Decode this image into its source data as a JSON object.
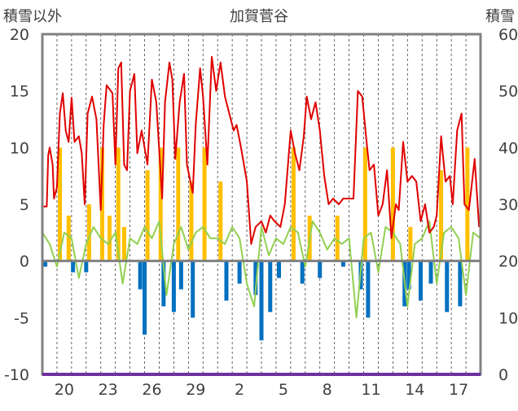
{
  "chart_data": {
    "type": "line",
    "title": "加賀菅谷",
    "ylabel_left": "積雪以外",
    "ylabel_right": "積雪",
    "ylim_left": [
      -10,
      20
    ],
    "ylim_right": [
      0,
      60
    ],
    "yticks_left": [
      "20",
      "15",
      "10",
      "5",
      "0",
      "-5",
      "-10"
    ],
    "yticks_right": [
      "60",
      "50",
      "40",
      "30",
      "20",
      "10",
      "0"
    ],
    "x_tick_labels": [
      "20",
      "23",
      "26",
      "29",
      "2",
      "5",
      "8",
      "11",
      "14",
      "17"
    ],
    "x_tick_day_index": [
      1.5,
      4.5,
      7.5,
      10.5,
      13.5,
      16.5,
      19.5,
      22.5,
      25.5,
      28.5
    ],
    "x_range_days": [
      0,
      30
    ],
    "grid": {
      "vertical_dashed_every_day": true,
      "horizontal": false
    },
    "colors": {
      "red_series": "#e00000",
      "green_series": "#92d050",
      "orange_bars": "#ffc000",
      "blue_bars": "#0070c0",
      "zero_line": "#808080",
      "bottom_line": "#7030a0",
      "frame": "#808080"
    },
    "series": [
      {
        "color_key": "red_series",
        "kind": "line",
        "axis": "left",
        "x": [
          0,
          0.3,
          0.4,
          0.5,
          0.7,
          0.8,
          1.0,
          1.2,
          1.4,
          1.6,
          1.8,
          2.0,
          2.2,
          2.5,
          2.7,
          2.9,
          3.1,
          3.4,
          3.7,
          4.0,
          4.2,
          4.4,
          4.8,
          5.0,
          5.2,
          5.4,
          5.6,
          5.8,
          6.0,
          6.3,
          6.5,
          6.8,
          7.0,
          7.2,
          7.5,
          7.8,
          8.2,
          8.4,
          8.7,
          8.9,
          9.1,
          9.4,
          9.7,
          9.9,
          10.3,
          10.5,
          10.8,
          11.0,
          11.3,
          11.6,
          11.9,
          12.2,
          12.5,
          12.8,
          13.1,
          13.3,
          13.6,
          14.0,
          14.3,
          14.6,
          15.0,
          15.3,
          15.6,
          15.9,
          16.3,
          16.6,
          17.0,
          17.3,
          17.6,
          17.9,
          18.1,
          18.4,
          18.7,
          19.0,
          19.3,
          19.6,
          19.9,
          20.3,
          20.6,
          21.0,
          21.3,
          21.6,
          21.9,
          22.2,
          22.4,
          22.7,
          23.0,
          23.3,
          23.6,
          23.9,
          24.2,
          24.4,
          24.7,
          25.0,
          25.3,
          25.6,
          25.9,
          26.2,
          26.5,
          26.8,
          27.0,
          27.3,
          27.6,
          27.9,
          28.1,
          28.4,
          28.7,
          28.9,
          29.2,
          29.6,
          29.9
        ],
        "values": [
          4.8,
          4.8,
          9.3,
          10.0,
          8.5,
          5.5,
          6.5,
          13.0,
          14.8,
          11.5,
          10.5,
          14.4,
          10.5,
          11.0,
          9.5,
          5.0,
          13.0,
          14.5,
          12.5,
          4.5,
          12.0,
          15.5,
          14.8,
          8.5,
          17.0,
          17.5,
          8.5,
          8.0,
          15.0,
          16.5,
          9.5,
          11.5,
          10.0,
          8.5,
          16.0,
          14.0,
          5.5,
          14.0,
          17.5,
          16.0,
          9.0,
          14.0,
          16.5,
          8.5,
          6.0,
          12.0,
          17.0,
          14.5,
          8.5,
          18.0,
          15.0,
          17.5,
          14.5,
          13.0,
          11.5,
          12.0,
          10.0,
          7.0,
          1.5,
          3.0,
          3.5,
          2.5,
          4.0,
          3.5,
          3.0,
          5.0,
          11.5,
          9.5,
          8.0,
          11.0,
          14.5,
          12.5,
          14.0,
          11.5,
          7.5,
          5.0,
          5.5,
          5.0,
          5.5,
          5.5,
          5.5,
          15.0,
          14.5,
          10.5,
          8.0,
          8.5,
          4.0,
          5.0,
          8.0,
          2.0,
          5.0,
          4.5,
          10.5,
          7.0,
          7.5,
          7.0,
          3.5,
          5.0,
          2.5,
          3.0,
          4.0,
          11.0,
          7.0,
          7.5,
          5.0,
          11.5,
          13.0,
          5.0,
          4.5,
          9.0,
          3.0
        ]
      },
      {
        "color_key": "green_series",
        "kind": "line",
        "axis": "left",
        "x": [
          0,
          0.5,
          1.0,
          1.5,
          2.0,
          2.5,
          3.0,
          3.5,
          4.0,
          4.5,
          5.0,
          5.5,
          6.0,
          6.5,
          7.0,
          7.5,
          8.0,
          8.5,
          9.0,
          9.5,
          10.0,
          10.5,
          11.0,
          11.5,
          12.0,
          12.5,
          13.0,
          13.5,
          14.0,
          14.5,
          15.0,
          15.5,
          16.0,
          16.5,
          17.0,
          17.5,
          18.0,
          18.5,
          19.0,
          19.5,
          20.0,
          20.5,
          21.0,
          21.5,
          22.0,
          22.5,
          23.0,
          23.5,
          24.0,
          24.5,
          25.0,
          25.5,
          26.0,
          26.5,
          27.0,
          27.5,
          28.0,
          28.5,
          29.0,
          29.5,
          30.0
        ],
        "values": [
          2.5,
          1.5,
          -0.5,
          2.5,
          2.0,
          -1.5,
          1.5,
          3.0,
          2.0,
          1.5,
          2.5,
          -2.0,
          2.0,
          1.5,
          3.0,
          2.0,
          3.5,
          -3.0,
          1.5,
          3.0,
          1.0,
          2.5,
          3.0,
          2.0,
          2.0,
          1.5,
          3.0,
          2.0,
          -2.0,
          -4.0,
          3.0,
          0.5,
          2.0,
          1.5,
          3.0,
          2.5,
          -0.5,
          3.5,
          2.5,
          1.0,
          2.0,
          1.5,
          2.0,
          -5.0,
          2.0,
          2.5,
          -1.0,
          3.0,
          2.5,
          1.5,
          -4.0,
          1.5,
          2.0,
          3.5,
          -2.0,
          2.5,
          3.0,
          2.0,
          -3.0,
          2.5,
          2.0
        ]
      },
      {
        "color_key": "orange_bars",
        "kind": "bars",
        "axis": "left",
        "x": [
          1.2,
          1.8,
          3.2,
          4.1,
          4.6,
          5.2,
          5.6,
          7.2,
          8.1,
          9.3,
          10.2,
          11.1,
          12.2,
          17.2,
          18.3,
          20.2,
          22.1,
          24.0,
          25.2,
          27.3,
          29.1
        ],
        "values": [
          10.0,
          4.0,
          5.0,
          10.0,
          4.0,
          10.0,
          3.0,
          8.0,
          10.0,
          10.0,
          7.0,
          10.0,
          7.0,
          10.0,
          4.0,
          4.0,
          10.0,
          10.0,
          3.0,
          8.0,
          10.0
        ]
      },
      {
        "color_key": "blue_bars",
        "kind": "bars",
        "axis": "left",
        "x": [
          0.2,
          2.1,
          3.0,
          6.7,
          7.0,
          8.3,
          9.0,
          9.5,
          10.3,
          12.6,
          13.5,
          14.6,
          15.0,
          15.6,
          16.2,
          17.8,
          19.0,
          20.6,
          21.8,
          22.3,
          24.8,
          25.1,
          25.9,
          26.6,
          27.7,
          28.6
        ],
        "values": [
          -0.5,
          -1.0,
          -1.0,
          -2.5,
          -6.5,
          -4.0,
          -4.5,
          -2.5,
          -5.0,
          -3.5,
          -2.0,
          -3.0,
          -7.0,
          -4.5,
          -1.5,
          -2.0,
          -1.5,
          -0.5,
          -2.5,
          -5.0,
          -4.0,
          -2.5,
          -3.5,
          -2.0,
          -4.5,
          -4.0
        ]
      }
    ]
  }
}
